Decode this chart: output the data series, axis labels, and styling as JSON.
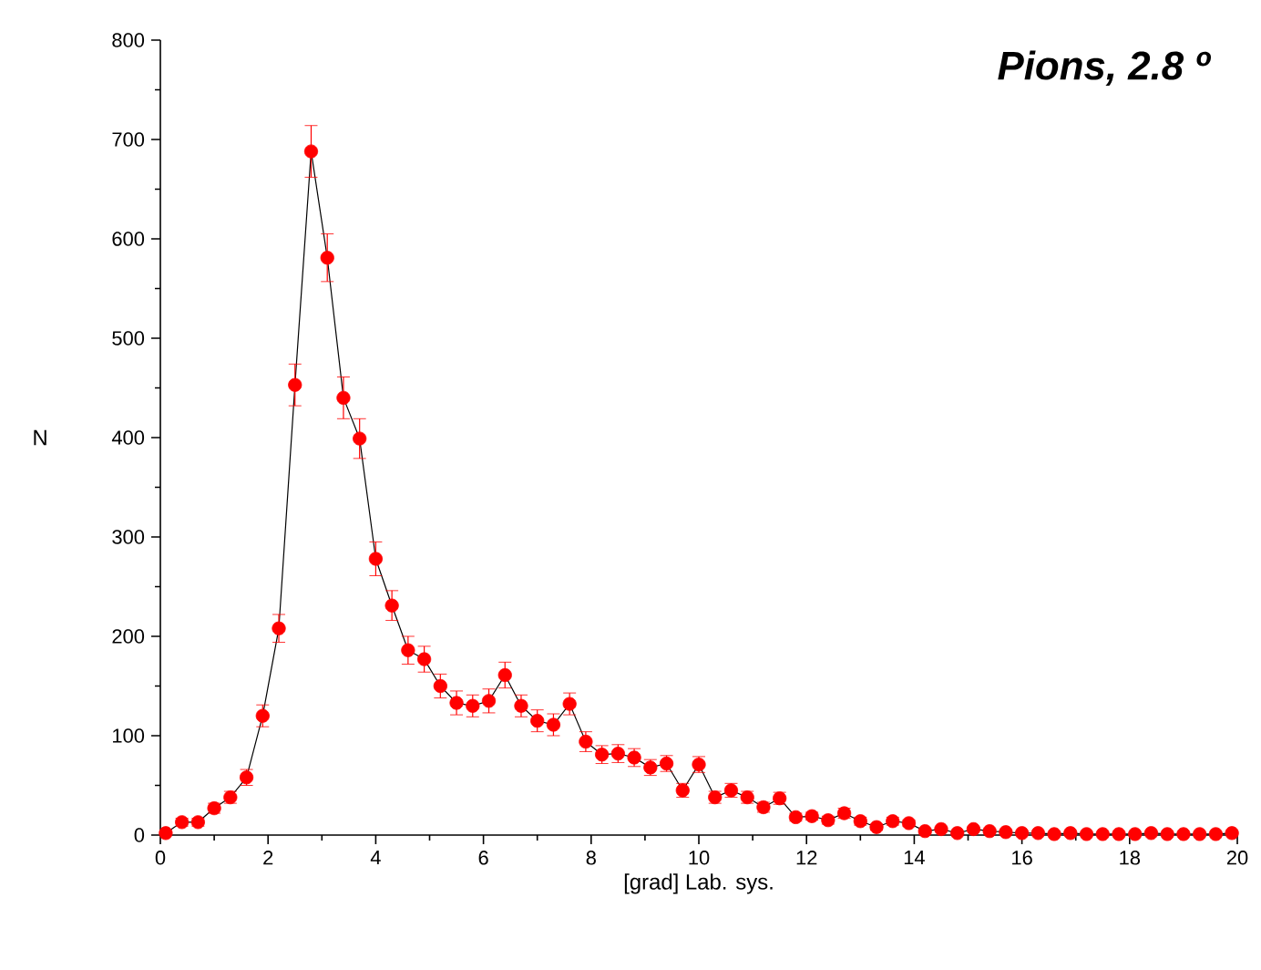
{
  "chart_data": {
    "type": "line",
    "title": "Pions, 2.8 º",
    "xlabel": "[grad] Lab. sys.",
    "ylabel": "N",
    "x": [
      0.1,
      0.4,
      0.7,
      1.0,
      1.3,
      1.6,
      1.9,
      2.2,
      2.5,
      2.8,
      3.1,
      3.4,
      3.7,
      4.0,
      4.3,
      4.6,
      4.9,
      5.2,
      5.5,
      5.8,
      6.1,
      6.4,
      6.7,
      7.0,
      7.3,
      7.6,
      7.9,
      8.2,
      8.5,
      8.8,
      9.1,
      9.4,
      9.7,
      10.0,
      10.3,
      10.6,
      10.9,
      11.2,
      11.5,
      11.8,
      12.1,
      12.4,
      12.7,
      13.0,
      13.3,
      13.6,
      13.9,
      14.2,
      14.5,
      14.8,
      15.1,
      15.4,
      15.7,
      16.0,
      16.3,
      16.6,
      16.9,
      17.2,
      17.5,
      17.8,
      18.1,
      18.4,
      18.7,
      19.0,
      19.3,
      19.6,
      19.9
    ],
    "series": [
      {
        "color": "#ff0000",
        "values": [
          2,
          13,
          13,
          27,
          38,
          58,
          120,
          208,
          453,
          688,
          581,
          440,
          399,
          278,
          231,
          186,
          177,
          150,
          133,
          130,
          135,
          161,
          130,
          115,
          111,
          132,
          94,
          81,
          82,
          78,
          68,
          72,
          45,
          71,
          38,
          45,
          38,
          28,
          37,
          18,
          19,
          15,
          22,
          14,
          8,
          14,
          12,
          4,
          6,
          2,
          6,
          4,
          3,
          2,
          2,
          1,
          2,
          1,
          1,
          1,
          1,
          2,
          1,
          1,
          1,
          1,
          2
        ],
        "errors": [
          1,
          4,
          4,
          5,
          6,
          8,
          11,
          14,
          21,
          26,
          24,
          21,
          20,
          17,
          15,
          14,
          13,
          12,
          12,
          11,
          12,
          13,
          11,
          11,
          11,
          11,
          10,
          9,
          9,
          9,
          8,
          8,
          7,
          8,
          6,
          7,
          6,
          5,
          6,
          4,
          4,
          4,
          5,
          4,
          3,
          4,
          3,
          2,
          2,
          1,
          2,
          2,
          2,
          1,
          1,
          1,
          1,
          1,
          1,
          1,
          1,
          1,
          1,
          1,
          1,
          1,
          1
        ]
      }
    ],
    "xlim": [
      0,
      20
    ],
    "ylim": [
      0,
      800
    ],
    "xticks": [
      0,
      2,
      4,
      6,
      8,
      10,
      12,
      14,
      16,
      18,
      20
    ],
    "yticks": [
      0,
      100,
      200,
      300,
      400,
      500,
      600,
      700,
      800
    ],
    "grid": false,
    "marker": "circle",
    "line_style": "solid"
  }
}
